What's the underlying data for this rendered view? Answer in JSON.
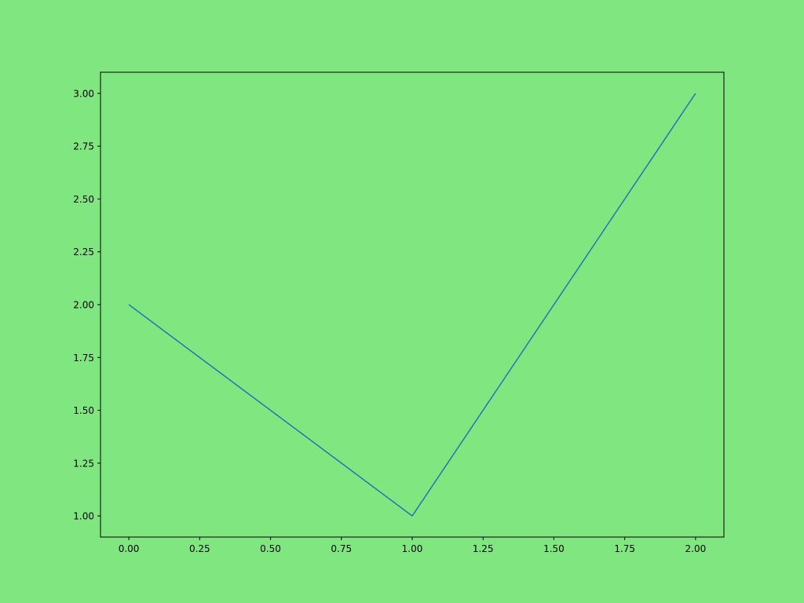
{
  "chart_data": {
    "type": "line",
    "title": "",
    "xlabel": "",
    "ylabel": "",
    "xlim": [
      -0.1,
      2.1
    ],
    "ylim": [
      0.9,
      3.1
    ],
    "grid": false,
    "x": [
      0,
      1,
      2
    ],
    "series": [
      {
        "values": [
          2,
          1,
          3
        ],
        "color": "#1f77b4"
      }
    ],
    "xticks": [
      "0.00",
      "0.25",
      "0.50",
      "0.75",
      "1.00",
      "1.25",
      "1.50",
      "1.75",
      "2.00"
    ],
    "yticks": [
      "1.00",
      "1.25",
      "1.50",
      "1.75",
      "2.00",
      "2.25",
      "2.50",
      "2.75",
      "3.00"
    ],
    "background_color": "#80e680"
  }
}
